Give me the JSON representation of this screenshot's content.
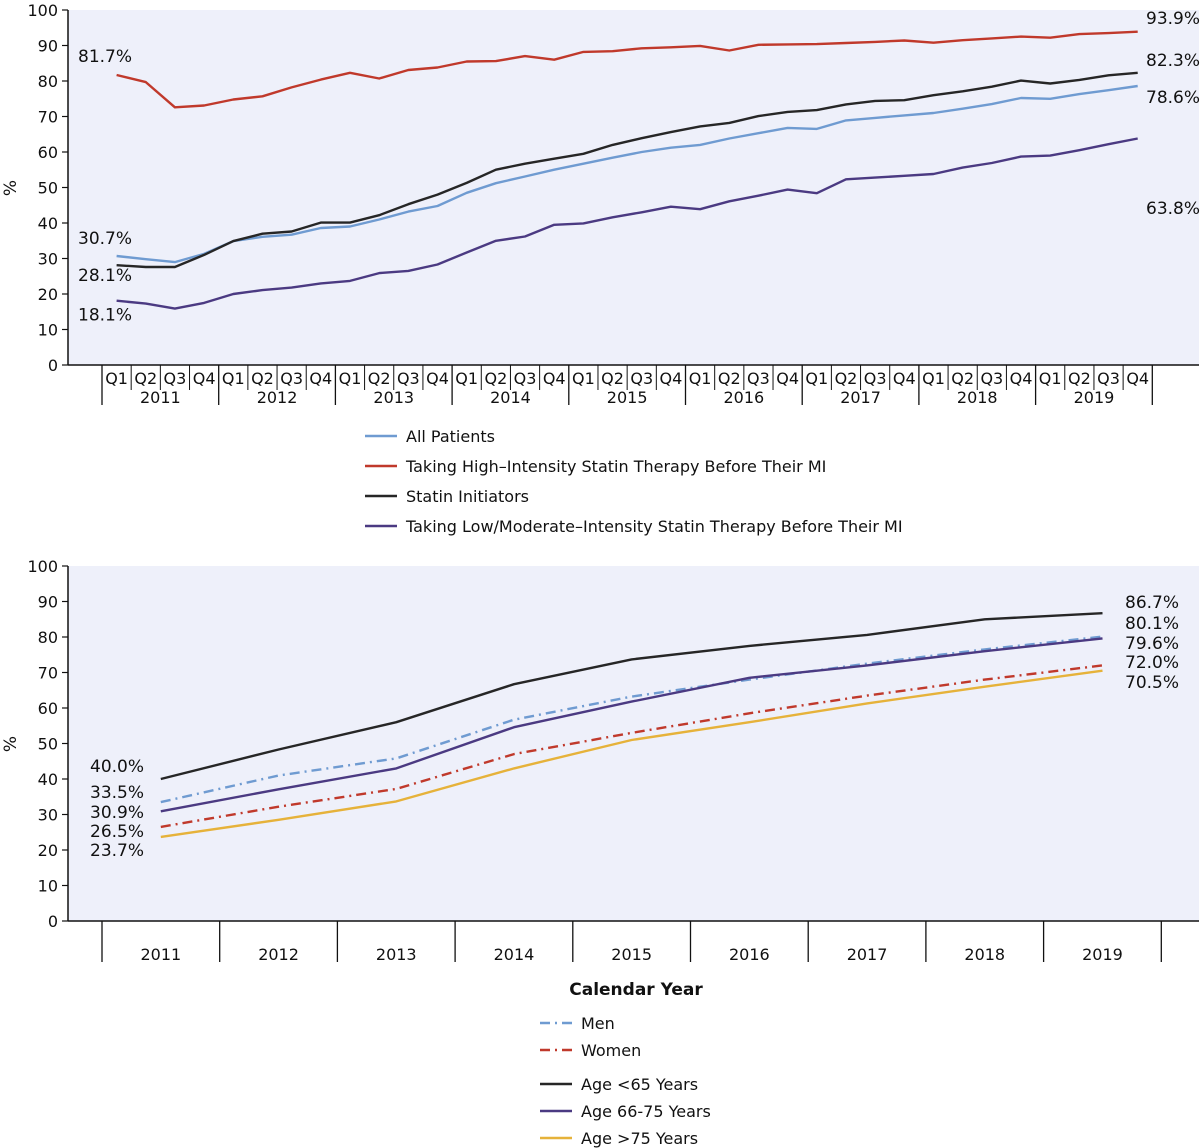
{
  "colors": {
    "all_patients": "#6f9bd1",
    "high_intensity": "#c0392b",
    "initiators": "#262626",
    "low_moderate": "#4b3a82",
    "men": "#6f9bd1",
    "women": "#c0392b",
    "age_lt65": "#262626",
    "age_66_75": "#4b3a82",
    "age_gt75": "#e6b23a",
    "plot_bg": "#eef0fa"
  },
  "chart_data": [
    {
      "type": "line",
      "ylabel": "%",
      "ylim": [
        0,
        100
      ],
      "yticks": [
        "0",
        "10",
        "20",
        "30",
        "40",
        "50",
        "60",
        "70",
        "80",
        "90",
        "100"
      ],
      "quarters": [
        "Q1",
        "Q2",
        "Q3",
        "Q4"
      ],
      "years": [
        "2011",
        "2012",
        "2013",
        "2014",
        "2015",
        "2016",
        "2017",
        "2018",
        "2019"
      ],
      "series": [
        {
          "key": "all_patients",
          "name": "All Patients",
          "style": "solid",
          "values": [
            30.7,
            29.8,
            29.0,
            31.3,
            34.9,
            36.1,
            36.7,
            38.6,
            39.0,
            41.0,
            43.2,
            44.8,
            48.5,
            51.2,
            53.1,
            55.0,
            56.7,
            58.4,
            60.0,
            61.2,
            62.0,
            63.8,
            65.3,
            66.8,
            66.5,
            68.9,
            69.6,
            70.3,
            71.0,
            72.2,
            73.5,
            75.2,
            75.0,
            76.3,
            77.4,
            78.6
          ],
          "start_label": "30.7%",
          "end_label": "78.6%"
        },
        {
          "key": "high_intensity",
          "name": "Taking High–Intensity Statin Therapy Before Their MI",
          "style": "solid",
          "values": [
            81.7,
            79.7,
            72.6,
            73.1,
            74.8,
            75.7,
            78.2,
            80.4,
            82.3,
            80.7,
            83.1,
            83.8,
            85.5,
            85.6,
            87.0,
            86.0,
            88.2,
            88.4,
            89.2,
            89.5,
            89.9,
            88.6,
            90.2,
            90.3,
            90.4,
            90.7,
            91.0,
            91.4,
            90.8,
            91.5,
            92.0,
            92.5,
            92.2,
            93.2,
            93.5,
            93.9
          ],
          "start_label": "81.7%",
          "end_label": "93.9%"
        },
        {
          "key": "initiators",
          "name": "Statin Initiators",
          "style": "solid",
          "values": [
            28.1,
            27.6,
            27.6,
            31.0,
            34.9,
            37.0,
            37.6,
            40.1,
            40.1,
            42.2,
            45.3,
            48.0,
            51.3,
            55.0,
            56.7,
            58.1,
            59.5,
            62.0,
            63.9,
            65.6,
            67.2,
            68.2,
            70.1,
            71.3,
            71.8,
            73.4,
            74.4,
            74.6,
            76.0,
            77.1,
            78.4,
            80.1,
            79.3,
            80.3,
            81.6,
            82.3
          ],
          "start_label": "28.1%",
          "end_label": "82.3%"
        },
        {
          "key": "low_moderate",
          "name": "Taking Low/Moderate–Intensity Statin Therapy Before Their MI",
          "style": "solid",
          "values": [
            18.1,
            17.3,
            15.9,
            17.5,
            20.0,
            21.1,
            21.8,
            23.0,
            23.7,
            25.9,
            26.5,
            28.3,
            31.7,
            35.0,
            36.2,
            39.5,
            39.9,
            41.6,
            43.0,
            44.6,
            43.9,
            46.1,
            47.7,
            49.4,
            48.4,
            52.3,
            52.8,
            53.3,
            53.8,
            55.6,
            56.9,
            58.7,
            59.0,
            60.5,
            62.2,
            63.8
          ],
          "start_label": "18.1%",
          "end_label": "63.8%"
        }
      ]
    },
    {
      "type": "line",
      "ylabel": "%",
      "xlabel": "Calendar  Year",
      "ylim": [
        0,
        100
      ],
      "yticks": [
        "0",
        "10",
        "20",
        "30",
        "40",
        "50",
        "60",
        "70",
        "80",
        "90",
        "100"
      ],
      "categories": [
        "2011",
        "2012",
        "2013",
        "2014",
        "2015",
        "2016",
        "2017",
        "2018",
        "2019"
      ],
      "series": [
        {
          "key": "age_lt65",
          "name": "Age <65 Years",
          "style": "solid",
          "values": [
            40.0,
            48.3,
            56.0,
            66.7,
            73.7,
            77.5,
            80.6,
            85.0,
            86.7
          ],
          "start_label": "40.0%",
          "end_label": "86.7%"
        },
        {
          "key": "men",
          "name": "Men",
          "style": "dashdot",
          "values": [
            33.5,
            41.0,
            45.8,
            56.7,
            63.2,
            68.0,
            72.5,
            76.5,
            80.1
          ],
          "start_label": "33.5%",
          "end_label": "80.1%"
        },
        {
          "key": "age_66_75",
          "name": "Age 66-75 Years",
          "style": "solid",
          "values": [
            30.9,
            37.1,
            43.0,
            54.6,
            61.8,
            68.5,
            72.0,
            76.0,
            79.6
          ],
          "start_label": "30.9%",
          "end_label": "79.6%"
        },
        {
          "key": "women",
          "name": "Women",
          "style": "dashdot",
          "values": [
            26.5,
            32.2,
            37.2,
            47.0,
            53.0,
            58.5,
            63.5,
            68.0,
            72.0
          ],
          "start_label": "26.5%",
          "end_label": "72.0%"
        },
        {
          "key": "age_gt75",
          "name": "Age >75 Years",
          "style": "solid",
          "values": [
            23.7,
            28.5,
            33.7,
            43.0,
            51.0,
            56.0,
            61.3,
            66.0,
            70.5
          ],
          "start_label": "23.7%",
          "end_label": "70.5%"
        }
      ]
    }
  ],
  "legends": {
    "top": [
      "all_patients",
      "high_intensity",
      "initiators",
      "low_moderate"
    ],
    "bottom": [
      "men",
      "women",
      "age_lt65",
      "age_66_75",
      "age_gt75"
    ]
  }
}
